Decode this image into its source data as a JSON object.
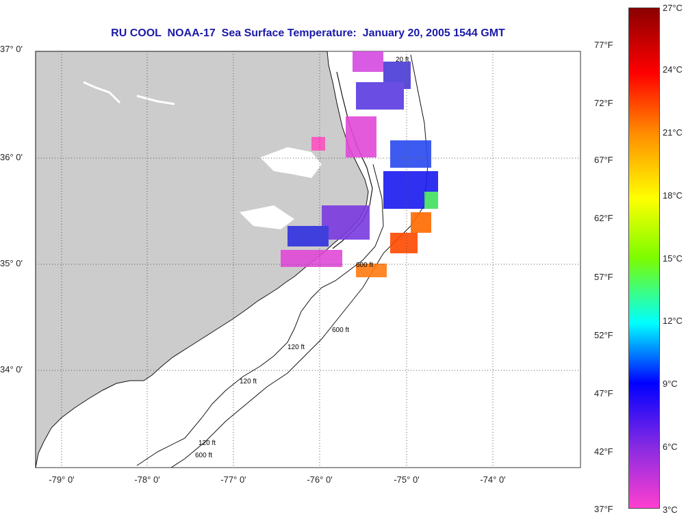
{
  "title": "RU COOL  NOAA-17  Sea Surface Temperature:  January 20, 2005 1544 GMT",
  "lat_labels": [
    "37° 0'",
    "36° 0'",
    "35° 0'",
    "34° 0'"
  ],
  "lon_labels": [
    "-79° 0'",
    "-78° 0'",
    "-77° 0'",
    "-76° 0'",
    "-75° 0'",
    "-74° 0'"
  ],
  "isobath_labels": [
    "120 ft",
    "600 ft",
    "120 ft",
    "600 ft",
    "120 ft",
    "600 ft",
    "20 ft"
  ],
  "colorbar": {
    "celsius": [
      "27°C",
      "24°C",
      "21°C",
      "18°C",
      "15°C",
      "12°C",
      "9°C",
      "6°C",
      "3°C"
    ],
    "fahrenheit": [
      "77°F",
      "72°F",
      "67°F",
      "62°F",
      "57°F",
      "52°F",
      "47°F",
      "42°F",
      "37°F"
    ],
    "colors": [
      "#8b0000",
      "#ff0000",
      "#ff8c00",
      "#ffff00",
      "#7cfc00",
      "#00ffff",
      "#0000ff",
      "#8a2be2",
      "#ff3fcf"
    ]
  },
  "colors": {
    "land": "#cccccc",
    "water": "#ffffff",
    "title": "#1a1aa8"
  }
}
